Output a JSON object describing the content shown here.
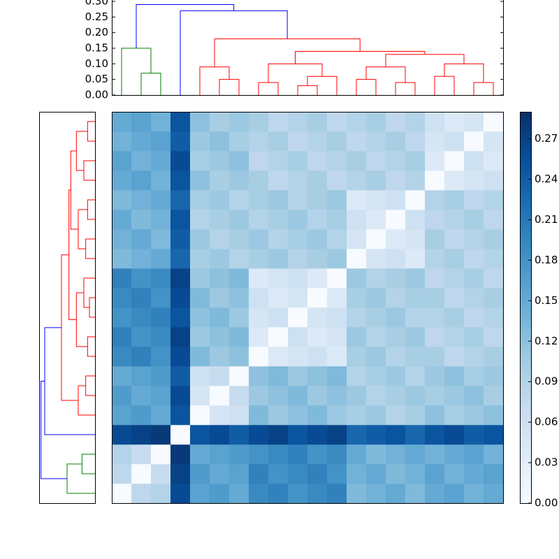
{
  "chart_data": {
    "type": "clustered-heatmap",
    "matrix": [
      [
        0,
        0.08,
        0.09,
        0.26,
        0.16,
        0.17,
        0.15,
        0.19,
        0.2,
        0.18,
        0.19,
        0.2,
        0.13,
        0.14,
        0.15,
        0.13,
        0.15,
        0.16,
        0.14,
        0.15
      ],
      [
        0.08,
        0,
        0.07,
        0.27,
        0.17,
        0.15,
        0.16,
        0.2,
        0.18,
        0.19,
        0.2,
        0.18,
        0.14,
        0.15,
        0.13,
        0.14,
        0.16,
        0.14,
        0.15,
        0.16
      ],
      [
        0.09,
        0.07,
        0,
        0.28,
        0.15,
        0.16,
        0.17,
        0.18,
        0.19,
        0.2,
        0.18,
        0.19,
        0.15,
        0.13,
        0.14,
        0.15,
        0.14,
        0.15,
        0.16,
        0.14
      ],
      [
        0.26,
        0.27,
        0.28,
        0,
        0.25,
        0.26,
        0.24,
        0.26,
        0.27,
        0.25,
        0.26,
        0.27,
        0.23,
        0.24,
        0.25,
        0.23,
        0.25,
        0.26,
        0.24,
        0.25
      ],
      [
        0.16,
        0.17,
        0.15,
        0.25,
        0,
        0.05,
        0.06,
        0.13,
        0.11,
        0.12,
        0.13,
        0.11,
        0.1,
        0.11,
        0.09,
        0.1,
        0.12,
        0.1,
        0.11,
        0.12
      ],
      [
        0.17,
        0.15,
        0.16,
        0.26,
        0.05,
        0,
        0.07,
        0.11,
        0.12,
        0.13,
        0.11,
        0.12,
        0.11,
        0.09,
        0.1,
        0.11,
        0.1,
        0.11,
        0.12,
        0.1
      ],
      [
        0.15,
        0.16,
        0.17,
        0.24,
        0.06,
        0.07,
        0,
        0.12,
        0.13,
        0.11,
        0.12,
        0.13,
        0.09,
        0.1,
        0.11,
        0.09,
        0.11,
        0.12,
        0.1,
        0.11
      ],
      [
        0.19,
        0.2,
        0.18,
        0.26,
        0.13,
        0.11,
        0.12,
        0,
        0.04,
        0.05,
        0.06,
        0.04,
        0.1,
        0.11,
        0.09,
        0.1,
        0.1,
        0.08,
        0.09,
        0.1
      ],
      [
        0.2,
        0.18,
        0.19,
        0.27,
        0.11,
        0.12,
        0.13,
        0.04,
        0,
        0.06,
        0.04,
        0.05,
        0.11,
        0.09,
        0.1,
        0.11,
        0.08,
        0.09,
        0.1,
        0.08
      ],
      [
        0.18,
        0.19,
        0.2,
        0.25,
        0.12,
        0.13,
        0.11,
        0.05,
        0.06,
        0,
        0.05,
        0.06,
        0.09,
        0.1,
        0.11,
        0.09,
        0.09,
        0.1,
        0.08,
        0.09
      ],
      [
        0.19,
        0.2,
        0.18,
        0.26,
        0.13,
        0.11,
        0.12,
        0.06,
        0.04,
        0.05,
        0,
        0.04,
        0.1,
        0.11,
        0.09,
        0.1,
        0.1,
        0.08,
        0.09,
        0.1
      ],
      [
        0.2,
        0.18,
        0.19,
        0.27,
        0.11,
        0.12,
        0.13,
        0.04,
        0.05,
        0.06,
        0.04,
        0,
        0.11,
        0.09,
        0.1,
        0.11,
        0.08,
        0.09,
        0.1,
        0.08
      ],
      [
        0.13,
        0.14,
        0.15,
        0.23,
        0.1,
        0.11,
        0.09,
        0.1,
        0.11,
        0.09,
        0.1,
        0.11,
        0,
        0.05,
        0.06,
        0.04,
        0.09,
        0.1,
        0.08,
        0.09
      ],
      [
        0.14,
        0.15,
        0.13,
        0.24,
        0.11,
        0.09,
        0.1,
        0.11,
        0.09,
        0.1,
        0.11,
        0.09,
        0.05,
        0,
        0.04,
        0.05,
        0.1,
        0.08,
        0.09,
        0.1
      ],
      [
        0.15,
        0.13,
        0.14,
        0.25,
        0.09,
        0.1,
        0.11,
        0.09,
        0.1,
        0.11,
        0.09,
        0.1,
        0.06,
        0.04,
        0,
        0.06,
        0.08,
        0.09,
        0.1,
        0.08
      ],
      [
        0.13,
        0.14,
        0.15,
        0.23,
        0.1,
        0.11,
        0.09,
        0.1,
        0.11,
        0.09,
        0.1,
        0.11,
        0.04,
        0.05,
        0.06,
        0,
        0.09,
        0.1,
        0.08,
        0.09
      ],
      [
        0.15,
        0.16,
        0.14,
        0.25,
        0.12,
        0.1,
        0.11,
        0.1,
        0.08,
        0.09,
        0.1,
        0.08,
        0.09,
        0.1,
        0.08,
        0.09,
        0,
        0.04,
        0.05,
        0.06
      ],
      [
        0.16,
        0.14,
        0.15,
        0.26,
        0.1,
        0.11,
        0.12,
        0.08,
        0.09,
        0.1,
        0.08,
        0.09,
        0.1,
        0.08,
        0.09,
        0.1,
        0.04,
        0,
        0.06,
        0.04
      ],
      [
        0.14,
        0.15,
        0.16,
        0.24,
        0.11,
        0.12,
        0.1,
        0.09,
        0.1,
        0.08,
        0.09,
        0.1,
        0.08,
        0.09,
        0.1,
        0.08,
        0.05,
        0.06,
        0,
        0.05
      ],
      [
        0.15,
        0.16,
        0.14,
        0.25,
        0.12,
        0.1,
        0.11,
        0.1,
        0.08,
        0.09,
        0.1,
        0.08,
        0.09,
        0.1,
        0.08,
        0.09,
        0.06,
        0.04,
        0.05,
        0
      ]
    ],
    "colorscale": [
      "#f7fbff",
      "#deebf7",
      "#c6dbef",
      "#9ecae1",
      "#6baed6",
      "#4292c6",
      "#2171b5",
      "#08519c",
      "#08306b"
    ],
    "zlim": [
      0,
      0.29
    ],
    "colorbar_ticks": [
      {
        "value": 0,
        "label": "0.00"
      },
      {
        "value": 0.03,
        "label": "0.03"
      },
      {
        "value": 0.06,
        "label": "0.06"
      },
      {
        "value": 0.09,
        "label": "0.09"
      },
      {
        "value": 0.12,
        "label": "0.12"
      },
      {
        "value": 0.15,
        "label": "0.15"
      },
      {
        "value": 0.18,
        "label": "0.18"
      },
      {
        "value": 0.21,
        "label": "0.21"
      },
      {
        "value": 0.24,
        "label": "0.24"
      },
      {
        "value": 0.27,
        "label": "0.27"
      }
    ],
    "dendrogram": {
      "ylim": [
        0,
        0.3
      ],
      "yticks": [
        {
          "value": 0,
          "label": "0.00"
        },
        {
          "value": 0.05,
          "label": "0.05"
        },
        {
          "value": 0.1,
          "label": "0.10"
        },
        {
          "value": 0.15,
          "label": "0.15"
        },
        {
          "value": 0.2,
          "label": "0.20"
        },
        {
          "value": 0.25,
          "label": "0.25"
        },
        {
          "value": 0.3,
          "label": "0.30"
        }
      ],
      "merges": [
        {
          "left": 1,
          "right": 2,
          "height": 0.07,
          "color": "#008000"
        },
        {
          "left": 0,
          "right": 20,
          "height": 0.15,
          "color": "#008000"
        },
        {
          "left": 5,
          "right": 6,
          "height": 0.05,
          "color": "#ff0000"
        },
        {
          "left": 4,
          "right": 22,
          "height": 0.09,
          "color": "#ff0000"
        },
        {
          "left": 7,
          "right": 8,
          "height": 0.04,
          "color": "#ff0000"
        },
        {
          "left": 9,
          "right": 10,
          "height": 0.03,
          "color": "#ff0000"
        },
        {
          "left": 25,
          "right": 11,
          "height": 0.06,
          "color": "#ff0000"
        },
        {
          "left": 24,
          "right": 26,
          "height": 0.1,
          "color": "#ff0000"
        },
        {
          "left": 12,
          "right": 13,
          "height": 0.05,
          "color": "#ff0000"
        },
        {
          "left": 14,
          "right": 15,
          "height": 0.04,
          "color": "#ff0000"
        },
        {
          "left": 28,
          "right": 29,
          "height": 0.09,
          "color": "#ff0000"
        },
        {
          "left": 16,
          "right": 17,
          "height": 0.06,
          "color": "#ff0000"
        },
        {
          "left": 18,
          "right": 19,
          "height": 0.04,
          "color": "#ff0000"
        },
        {
          "left": 31,
          "right": 32,
          "height": 0.1,
          "color": "#ff0000"
        },
        {
          "left": 30,
          "right": 33,
          "height": 0.13,
          "color": "#ff0000"
        },
        {
          "left": 27,
          "right": 34,
          "height": 0.14,
          "color": "#ff0000"
        },
        {
          "left": 23,
          "right": 35,
          "height": 0.18,
          "color": "#ff0000"
        },
        {
          "left": 3,
          "right": 36,
          "height": 0.27,
          "color": "#0000ff"
        },
        {
          "left": 21,
          "right": 37,
          "height": 0.29,
          "color": "#0000ff"
        }
      ]
    }
  }
}
